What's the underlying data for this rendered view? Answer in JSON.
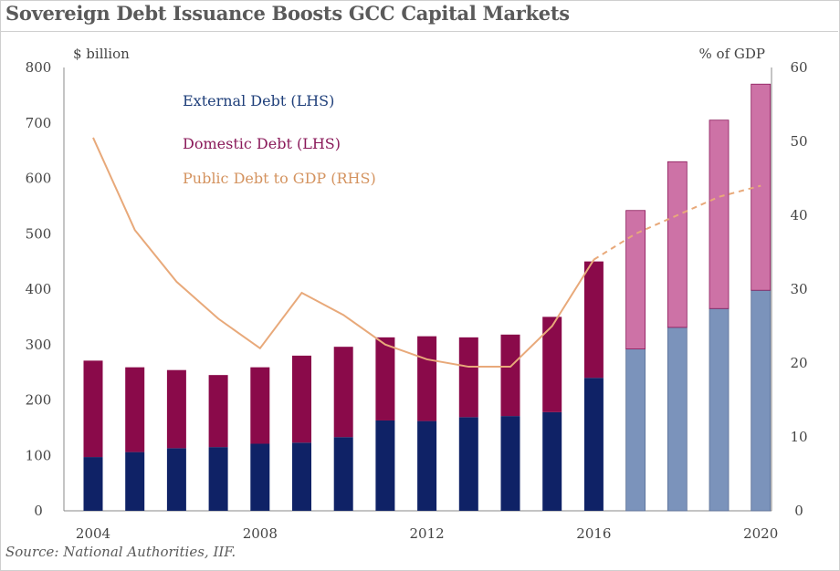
{
  "title": "Sovereign Debt Issuance Boosts GCC Capital Markets",
  "source": "Source: National Authorities, IIF.",
  "chart_data": {
    "type": "bar",
    "stacked": true,
    "title": "Sovereign Debt Issuance Boosts GCC Capital Markets",
    "y_left_label": "$ billion",
    "y_right_label": "% of GDP",
    "y_left_lim": [
      0,
      800
    ],
    "y_left_ticks": [
      0,
      100,
      200,
      300,
      400,
      500,
      600,
      700,
      800
    ],
    "y_right_lim": [
      0,
      60
    ],
    "y_right_ticks": [
      0,
      10,
      20,
      30,
      40,
      50,
      60
    ],
    "x": [
      2004,
      2005,
      2006,
      2007,
      2008,
      2009,
      2010,
      2011,
      2012,
      2013,
      2014,
      2015,
      2016,
      2017,
      2018,
      2019,
      2020
    ],
    "x_tick_labels": [
      "2004",
      "2008",
      "2012",
      "2016",
      "2020"
    ],
    "forecast_from": 2017,
    "series": [
      {
        "name": "External Debt (LHS)",
        "axis": "left",
        "color": "#0f2266",
        "forecast_color": "#7b93bb",
        "values": [
          97,
          106,
          113,
          115,
          121,
          123,
          133,
          163,
          162,
          169,
          171,
          178,
          240,
          292,
          331,
          365,
          398
        ]
      },
      {
        "name": "Domestic Debt (LHS)",
        "axis": "left",
        "color": "#8a0a4a",
        "forecast_color": "#cd72a6",
        "values": [
          174,
          153,
          141,
          130,
          138,
          157,
          163,
          150,
          153,
          144,
          147,
          172,
          210,
          250,
          299,
          340,
          372
        ]
      },
      {
        "name": "Public Debt to GDP (RHS)",
        "axis": "right",
        "type": "line",
        "color": "#e8a97a",
        "values": [
          50.5,
          38,
          31,
          26,
          22,
          29.5,
          26.5,
          22.5,
          20.5,
          19.5,
          19.5,
          25,
          34,
          37.5,
          40,
          42.5,
          44
        ]
      }
    ],
    "legend_position": "top-left",
    "grid": false
  }
}
